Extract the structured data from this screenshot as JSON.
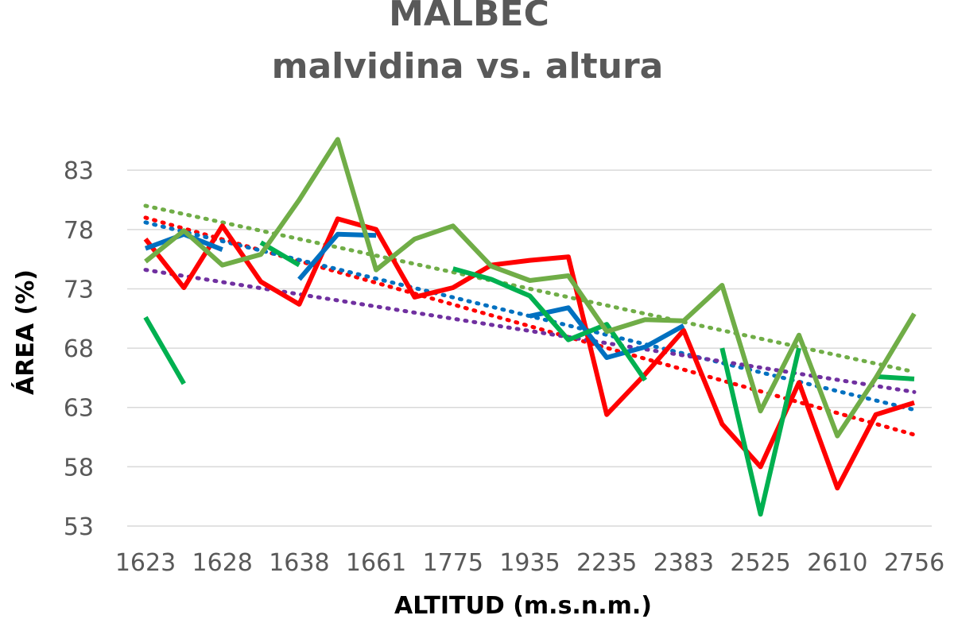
{
  "chart_data": {
    "type": "line",
    "title": "MALBEC",
    "subtitle": "malvidina vs. altura",
    "xlabel": "ALTITUD (m.s.n.m.)",
    "ylabel": "ÁREA (%)",
    "x_tick_labels": [
      "1623",
      "1628",
      "1638",
      "1661",
      "1775",
      "1935",
      "2235",
      "2383",
      "2525",
      "2610",
      "2756"
    ],
    "y_ticks": [
      53,
      58,
      63,
      68,
      73,
      78,
      83
    ],
    "ylim": [
      53,
      87.3
    ],
    "point_count": 21,
    "series": [
      {
        "color": "#ff0000",
        "values": [
          77.2,
          73.1,
          78.3,
          73.6,
          71.7,
          78.9,
          78.0,
          72.3,
          73.1,
          75.0,
          75.4,
          75.7,
          62.4,
          65.8,
          69.5,
          61.6,
          58.0,
          65.1,
          56.2,
          62.4,
          63.4
        ]
      },
      {
        "color": "#0070c0",
        "values": [
          76.4,
          77.6,
          76.3,
          null,
          73.8,
          77.6,
          77.5,
          null,
          null,
          null,
          70.7,
          71.4,
          67.2,
          68.1,
          69.9,
          null,
          null,
          null,
          null,
          null,
          null
        ]
      },
      {
        "color": "#00b050",
        "values": [
          70.6,
          65.0,
          null,
          76.9,
          75.0,
          null,
          null,
          null,
          74.7,
          73.8,
          72.4,
          68.7,
          70.0,
          65.3,
          null,
          68.0,
          54.0,
          68.0,
          null,
          65.6,
          65.4
        ]
      },
      {
        "color": "#70ad47",
        "values": [
          75.3,
          77.9,
          75.0,
          75.9,
          80.5,
          85.6,
          74.6,
          77.2,
          78.3,
          74.9,
          73.7,
          74.1,
          69.4,
          70.4,
          70.3,
          73.3,
          62.7,
          69.1,
          60.6,
          65.5,
          70.9
        ]
      }
    ],
    "trendlines": [
      {
        "color": "#70ad47",
        "style": "dotted",
        "from": 80.0,
        "to": 66.0
      },
      {
        "color": "#ff0000",
        "style": "dotted",
        "from": 79.0,
        "to": 60.7
      },
      {
        "color": "#0070c0",
        "style": "dotted",
        "from": 78.6,
        "to": 62.8
      },
      {
        "color": "#7030a0",
        "style": "dotted",
        "from": 74.6,
        "to": 64.3
      }
    ],
    "grid": true,
    "legend": "none"
  }
}
